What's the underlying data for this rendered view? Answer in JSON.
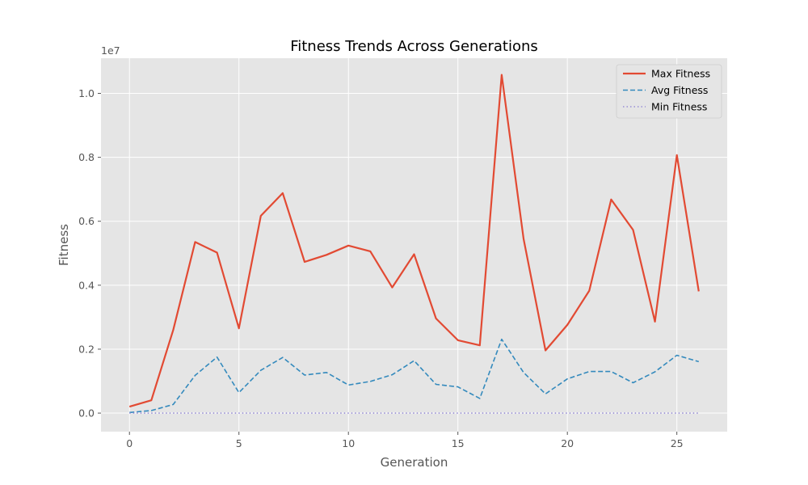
{
  "chart_data": {
    "type": "line",
    "title": "Fitness Trends Across Generations",
    "xlabel": "Generation",
    "ylabel": "Fitness",
    "y_offset_label": "1e7",
    "x": [
      0,
      1,
      2,
      3,
      4,
      5,
      6,
      7,
      8,
      9,
      10,
      11,
      12,
      13,
      14,
      15,
      16,
      17,
      18,
      19,
      20,
      21,
      22,
      23,
      24,
      25,
      26
    ],
    "xlim": [
      -1.3,
      27.3
    ],
    "ylim": [
      -580000,
      11100000
    ],
    "x_ticks": [
      0,
      5,
      10,
      15,
      20,
      25
    ],
    "x_tick_labels": [
      "0",
      "5",
      "10",
      "15",
      "20",
      "25"
    ],
    "y_ticks": [
      0,
      2000000,
      4000000,
      6000000,
      8000000,
      10000000
    ],
    "y_tick_labels": [
      "0.0",
      "0.2",
      "0.4",
      "0.6",
      "0.8",
      "1.0"
    ],
    "grid": true,
    "legend_position": "top-right",
    "series": [
      {
        "name": "Max Fitness",
        "color": "#E24A33",
        "style": "solid",
        "values": [
          200000,
          400000,
          2600000,
          5350000,
          5020000,
          2650000,
          6170000,
          6880000,
          4730000,
          4950000,
          5240000,
          5060000,
          3930000,
          4970000,
          2960000,
          2280000,
          2120000,
          10580000,
          5450000,
          1960000,
          2760000,
          3830000,
          6680000,
          5730000,
          2860000,
          8070000,
          3810000
        ]
      },
      {
        "name": "Avg Fitness",
        "color": "#348ABD",
        "style": "dashed",
        "values": [
          20000,
          80000,
          270000,
          1180000,
          1750000,
          640000,
          1340000,
          1740000,
          1190000,
          1270000,
          880000,
          990000,
          1200000,
          1640000,
          900000,
          820000,
          460000,
          2310000,
          1270000,
          600000,
          1070000,
          1300000,
          1300000,
          950000,
          1290000,
          1810000,
          1610000
        ]
      },
      {
        "name": "Min Fitness",
        "color": "#988ED5",
        "style": "dotted",
        "values": [
          0,
          0,
          0,
          0,
          0,
          0,
          0,
          0,
          0,
          0,
          0,
          0,
          0,
          0,
          0,
          0,
          0,
          0,
          0,
          0,
          0,
          0,
          0,
          0,
          0,
          0,
          0
        ]
      }
    ]
  }
}
